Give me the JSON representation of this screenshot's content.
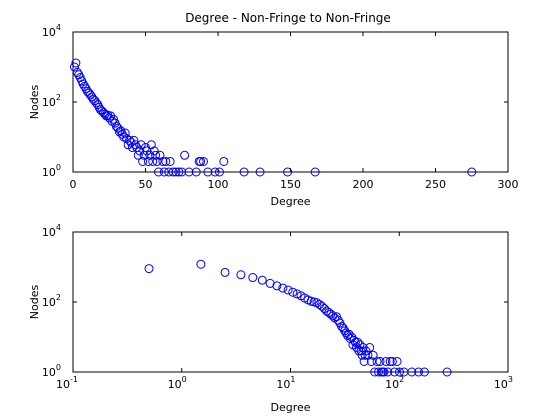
{
  "chart_data": [
    {
      "type": "scatter",
      "title": "Degree - Non-Fringe to Non-Fringe",
      "xlabel": "Degree",
      "ylabel": "Nodes",
      "x_scale": "linear",
      "y_scale": "log",
      "xlim": [
        0,
        300
      ],
      "ylim": [
        1,
        10000
      ],
      "x_ticks": [
        {
          "value": 0,
          "label": "0"
        },
        {
          "value": 50,
          "label": "50"
        },
        {
          "value": 100,
          "label": "100"
        },
        {
          "value": 150,
          "label": "150"
        },
        {
          "value": 200,
          "label": "200"
        },
        {
          "value": 250,
          "label": "250"
        },
        {
          "value": 300,
          "label": "300"
        }
      ],
      "y_ticks": [
        {
          "value": 1,
          "label": "10",
          "exp": "0"
        },
        {
          "value": 100,
          "label": "10",
          "exp": "2"
        },
        {
          "value": 10000,
          "label": "10",
          "exp": "4"
        }
      ],
      "grid": false,
      "marker": "open-circle",
      "color": "#0000ff",
      "points": [
        [
          1,
          1000
        ],
        [
          2,
          1300
        ],
        [
          3,
          700
        ],
        [
          4,
          600
        ],
        [
          5,
          500
        ],
        [
          6,
          400
        ],
        [
          7,
          330
        ],
        [
          8,
          280
        ],
        [
          9,
          240
        ],
        [
          10,
          200
        ],
        [
          11,
          180
        ],
        [
          12,
          160
        ],
        [
          13,
          140
        ],
        [
          14,
          120
        ],
        [
          15,
          110
        ],
        [
          16,
          95
        ],
        [
          17,
          85
        ],
        [
          18,
          70
        ],
        [
          19,
          60
        ],
        [
          20,
          55
        ],
        [
          21,
          50
        ],
        [
          22,
          45
        ],
        [
          23,
          40
        ],
        [
          24,
          42
        ],
        [
          25,
          35
        ],
        [
          26,
          40
        ],
        [
          27,
          28
        ],
        [
          28,
          32
        ],
        [
          29,
          25
        ],
        [
          30,
          20
        ],
        [
          31,
          18
        ],
        [
          32,
          14
        ],
        [
          33,
          15
        ],
        [
          34,
          12
        ],
        [
          35,
          10
        ],
        [
          36,
          13
        ],
        [
          37,
          9
        ],
        [
          38,
          6
        ],
        [
          39,
          8
        ],
        [
          40,
          7
        ],
        [
          41,
          5
        ],
        [
          42,
          8
        ],
        [
          43,
          6
        ],
        [
          44,
          5
        ],
        [
          45,
          3
        ],
        [
          46,
          4
        ],
        [
          47,
          6
        ],
        [
          48,
          2
        ],
        [
          49,
          3
        ],
        [
          50,
          5
        ],
        [
          51,
          4
        ],
        [
          52,
          2
        ],
        [
          53,
          3
        ],
        [
          54,
          6
        ],
        [
          55,
          2
        ],
        [
          56,
          4
        ],
        [
          57,
          3
        ],
        [
          58,
          2
        ],
        [
          59,
          1
        ],
        [
          60,
          3
        ],
        [
          62,
          2
        ],
        [
          63,
          1
        ],
        [
          64,
          2
        ],
        [
          66,
          1
        ],
        [
          67,
          2
        ],
        [
          69,
          1
        ],
        [
          71,
          1
        ],
        [
          73,
          1
        ],
        [
          75,
          1
        ],
        [
          77,
          3
        ],
        [
          80,
          1
        ],
        [
          85,
          1
        ],
        [
          87,
          2
        ],
        [
          88,
          2
        ],
        [
          90,
          2
        ],
        [
          93,
          1
        ],
        [
          98,
          1
        ],
        [
          101,
          1
        ],
        [
          104,
          2
        ],
        [
          118,
          1
        ],
        [
          129,
          1
        ],
        [
          148,
          1
        ],
        [
          167,
          1
        ],
        [
          275,
          1
        ]
      ]
    },
    {
      "type": "scatter",
      "title": "",
      "xlabel": "Degree",
      "ylabel": "Nodes",
      "x_scale": "log",
      "y_scale": "log",
      "xlim": [
        0.1,
        1000
      ],
      "ylim": [
        1,
        10000
      ],
      "x_ticks": [
        {
          "value": 0.1,
          "label": "10",
          "exp": "-1"
        },
        {
          "value": 1,
          "label": "10",
          "exp": "0"
        },
        {
          "value": 10,
          "label": "10",
          "exp": "1"
        },
        {
          "value": 100,
          "label": "10",
          "exp": "2"
        },
        {
          "value": 1000,
          "label": "10",
          "exp": "3"
        }
      ],
      "y_ticks": [
        {
          "value": 1,
          "label": "10",
          "exp": "0"
        },
        {
          "value": 100,
          "label": "10",
          "exp": "2"
        },
        {
          "value": 10000,
          "label": "10",
          "exp": "4"
        }
      ],
      "grid": false,
      "marker": "open-circle",
      "color": "#0000ff",
      "points": [
        [
          0.5,
          900
        ],
        [
          1.5,
          1200
        ],
        [
          2.5,
          700
        ],
        [
          3.5,
          600
        ],
        [
          4.5,
          500
        ],
        [
          5.5,
          420
        ],
        [
          6.5,
          340
        ],
        [
          7.5,
          290
        ],
        [
          8.5,
          250
        ],
        [
          9.5,
          220
        ],
        [
          10.5,
          190
        ],
        [
          11.5,
          170
        ],
        [
          12.5,
          150
        ],
        [
          13.5,
          130
        ],
        [
          14.5,
          115
        ],
        [
          15.5,
          105
        ],
        [
          16.5,
          100
        ],
        [
          17.5,
          95
        ],
        [
          18.5,
          85
        ],
        [
          19.5,
          75
        ],
        [
          20.5,
          65
        ],
        [
          21.5,
          55
        ],
        [
          22.5,
          50
        ],
        [
          23.5,
          45
        ],
        [
          24.5,
          40
        ],
        [
          25.5,
          35
        ],
        [
          26.5,
          38
        ],
        [
          27.5,
          30
        ],
        [
          28.5,
          25
        ],
        [
          29.5,
          20
        ],
        [
          30.5,
          18
        ],
        [
          31.5,
          15
        ],
        [
          32.5,
          13
        ],
        [
          33.5,
          11
        ],
        [
          34.5,
          12
        ],
        [
          35.5,
          9
        ],
        [
          36.5,
          10
        ],
        [
          37.5,
          6
        ],
        [
          38.5,
          8
        ],
        [
          39.5,
          7
        ],
        [
          40.5,
          5
        ],
        [
          41.5,
          7
        ],
        [
          42.5,
          4
        ],
        [
          43.5,
          6
        ],
        [
          44.5,
          4
        ],
        [
          45.5,
          3
        ],
        [
          46.5,
          5
        ],
        [
          47.5,
          2
        ],
        [
          48.5,
          3
        ],
        [
          49.5,
          4
        ],
        [
          51.5,
          3
        ],
        [
          53.5,
          5
        ],
        [
          55.5,
          2
        ],
        [
          57.5,
          3
        ],
        [
          59.5,
          1
        ],
        [
          62.5,
          2
        ],
        [
          64.5,
          1
        ],
        [
          66.5,
          2
        ],
        [
          68.5,
          1
        ],
        [
          70.5,
          1
        ],
        [
          72.5,
          1
        ],
        [
          75.5,
          2
        ],
        [
          78.5,
          1
        ],
        [
          82.5,
          2
        ],
        [
          86.5,
          2
        ],
        [
          90.5,
          1
        ],
        [
          95.5,
          2
        ],
        [
          100.5,
          1
        ],
        [
          110.5,
          1
        ],
        [
          130.5,
          1
        ],
        [
          150.5,
          1
        ],
        [
          170.5,
          1
        ],
        [
          275.5,
          1
        ]
      ]
    }
  ]
}
